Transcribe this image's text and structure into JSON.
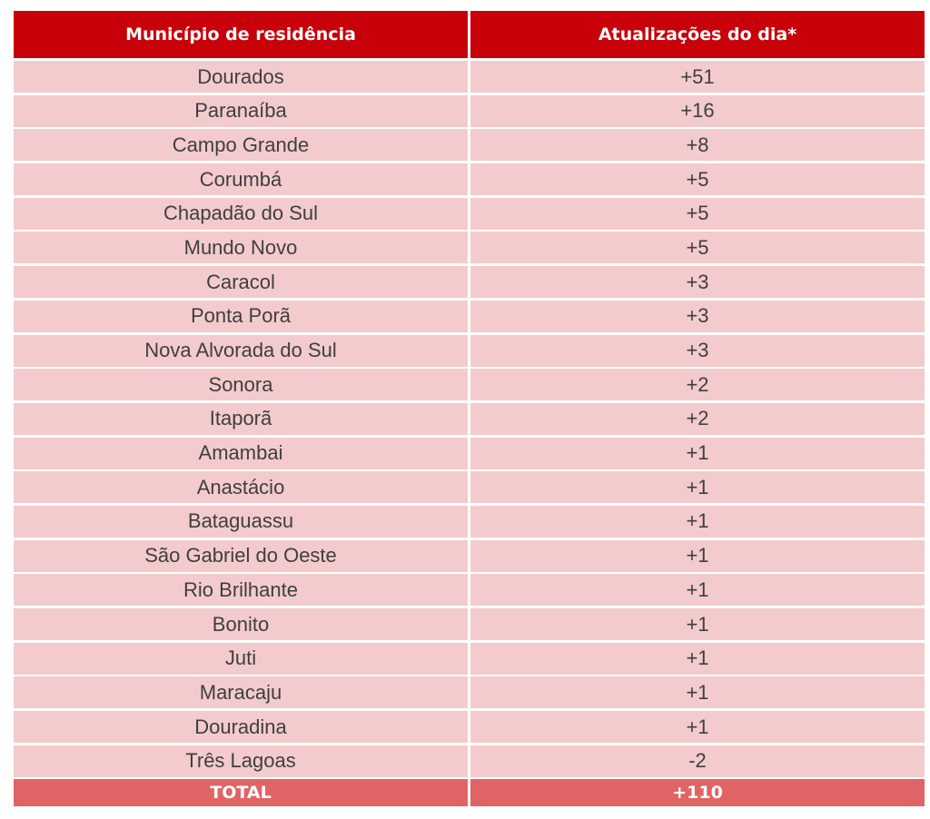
{
  "table": {
    "headers": {
      "municipality": "Município de residência",
      "updates": "Atualizações do dia*"
    },
    "rows": [
      {
        "municipality": "Dourados",
        "updates": "+51"
      },
      {
        "municipality": "Paranaíba",
        "updates": "+16"
      },
      {
        "municipality": "Campo Grande",
        "updates": "+8"
      },
      {
        "municipality": "Corumbá",
        "updates": "+5"
      },
      {
        "municipality": "Chapadão do Sul",
        "updates": "+5"
      },
      {
        "municipality": "Mundo Novo",
        "updates": "+5"
      },
      {
        "municipality": "Caracol",
        "updates": "+3"
      },
      {
        "municipality": "Ponta Porã",
        "updates": "+3"
      },
      {
        "municipality": "Nova Alvorada do Sul",
        "updates": "+3"
      },
      {
        "municipality": "Sonora",
        "updates": "+2"
      },
      {
        "municipality": "Itaporã",
        "updates": "+2"
      },
      {
        "municipality": "Amambai",
        "updates": "+1"
      },
      {
        "municipality": "Anastácio",
        "updates": "+1"
      },
      {
        "municipality": "Bataguassu",
        "updates": "+1"
      },
      {
        "municipality": "São Gabriel do Oeste",
        "updates": "+1"
      },
      {
        "municipality": "Rio Brilhante",
        "updates": "+1"
      },
      {
        "municipality": "Bonito",
        "updates": "+1"
      },
      {
        "municipality": "Juti",
        "updates": "+1"
      },
      {
        "municipality": "Maracaju",
        "updates": "+1"
      },
      {
        "municipality": "Douradina",
        "updates": "+1"
      },
      {
        "municipality": "Três Lagoas",
        "updates": "-2"
      }
    ],
    "total": {
      "label": "TOTAL",
      "value": "+110"
    },
    "colors": {
      "header_bg": "#c8000a",
      "row_bg": "#f3cbcc",
      "total_bg": "#e06466",
      "row_text": "#3f3f3f",
      "header_text": "#ffffff"
    }
  }
}
